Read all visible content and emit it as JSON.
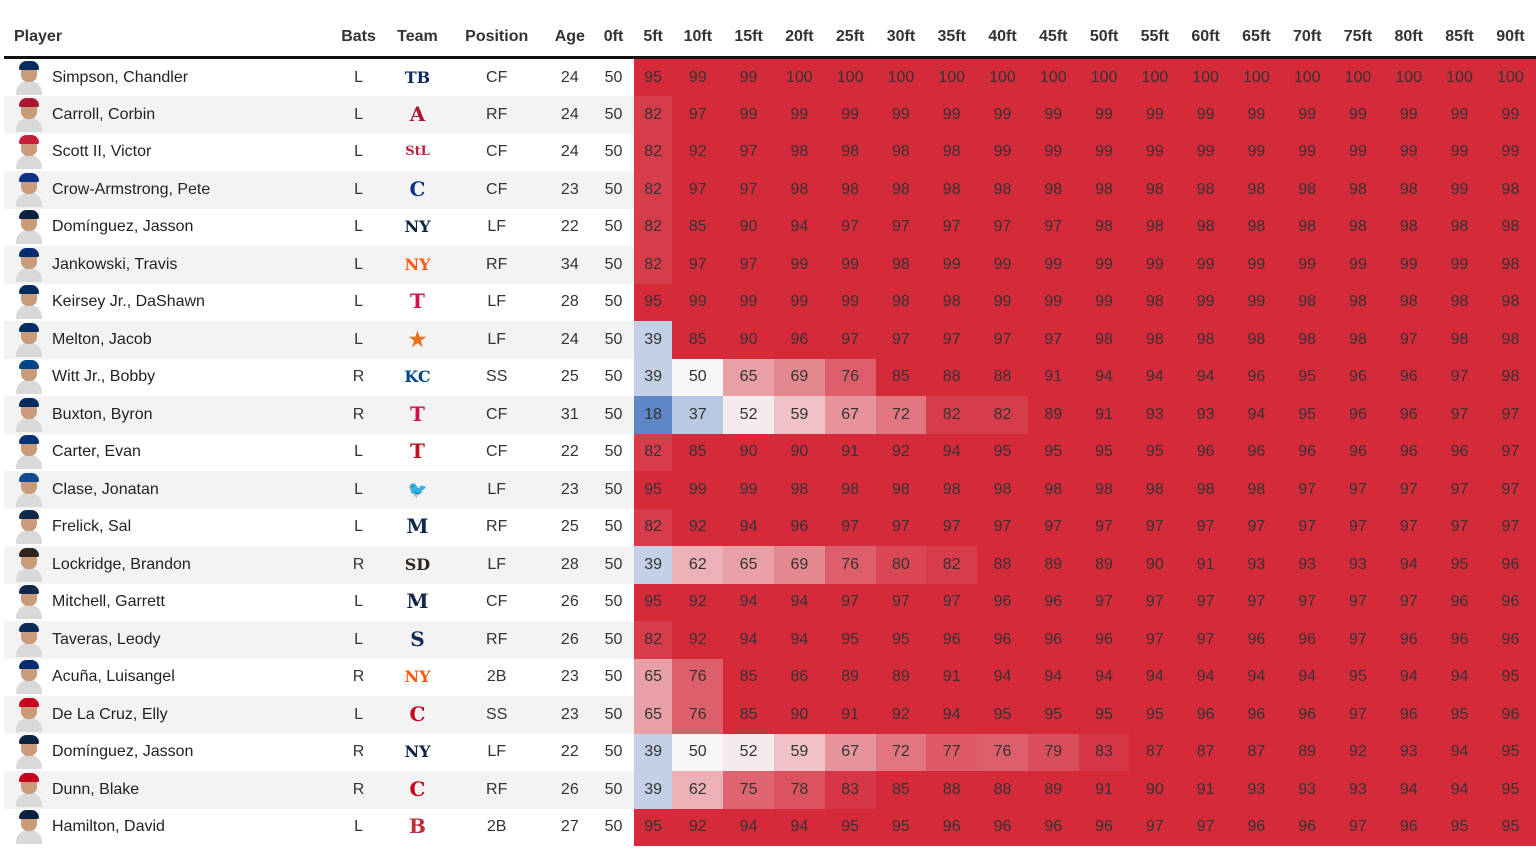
{
  "headers": [
    "Player",
    "Bats",
    "Team",
    "Position",
    "Age",
    "0ft",
    "5ft",
    "10ft",
    "15ft",
    "20ft",
    "25ft",
    "30ft",
    "35ft",
    "40ft",
    "45ft",
    "50ft",
    "55ft",
    "60ft",
    "65ft",
    "70ft",
    "75ft",
    "80ft",
    "85ft",
    "90ft"
  ],
  "rows": [
    {
      "player": "Simpson, Chandler",
      "bats": "L",
      "team_icon": "rays-logo",
      "logo_glyph": "TB",
      "logo_color": "#092c5c",
      "cap_color": "#092c5c",
      "pos": "CF",
      "age": "24",
      "zero": "50",
      "values": [
        95,
        99,
        99,
        100,
        100,
        100,
        100,
        100,
        100,
        100,
        100,
        100,
        100,
        100,
        100,
        100,
        100,
        100
      ]
    },
    {
      "player": "Carroll, Corbin",
      "bats": "L",
      "team_icon": "diamondbacks-logo",
      "logo_glyph": "A",
      "logo_color": "#a71930",
      "cap_color": "#a71930",
      "pos": "RF",
      "age": "24",
      "zero": "50",
      "values": [
        82,
        97,
        99,
        99,
        99,
        99,
        99,
        99,
        99,
        99,
        99,
        99,
        99,
        99,
        99,
        99,
        99,
        99
      ]
    },
    {
      "player": "Scott II, Victor",
      "bats": "L",
      "team_icon": "cardinals-logo",
      "logo_glyph": "StL",
      "logo_color": "#c41e3a",
      "cap_color": "#c41e3a",
      "pos": "CF",
      "age": "24",
      "zero": "50",
      "values": [
        82,
        92,
        97,
        98,
        98,
        98,
        98,
        99,
        99,
        99,
        99,
        99,
        99,
        99,
        99,
        99,
        99,
        99
      ]
    },
    {
      "player": "Crow-Armstrong, Pete",
      "bats": "L",
      "team_icon": "cubs-logo",
      "logo_glyph": "C",
      "logo_color": "#0e3386",
      "cap_color": "#0e3386",
      "pos": "CF",
      "age": "23",
      "zero": "50",
      "values": [
        82,
        97,
        97,
        98,
        98,
        98,
        98,
        98,
        98,
        98,
        98,
        98,
        98,
        98,
        98,
        98,
        99,
        98
      ]
    },
    {
      "player": "Domínguez, Jasson",
      "bats": "L",
      "team_icon": "yankees-logo",
      "logo_glyph": "NY",
      "logo_color": "#0c2340",
      "cap_color": "#0c2340",
      "pos": "LF",
      "age": "22",
      "zero": "50",
      "values": [
        82,
        85,
        90,
        94,
        97,
        97,
        97,
        97,
        97,
        98,
        98,
        98,
        98,
        98,
        98,
        98,
        98,
        98
      ]
    },
    {
      "player": "Jankowski, Travis",
      "bats": "L",
      "team_icon": "mets-logo",
      "logo_glyph": "NY",
      "logo_color": "#ff5910",
      "cap_color": "#002d72",
      "pos": "RF",
      "age": "34",
      "zero": "50",
      "values": [
        82,
        97,
        97,
        99,
        99,
        98,
        99,
        99,
        99,
        99,
        99,
        99,
        99,
        99,
        99,
        99,
        99,
        98
      ]
    },
    {
      "player": "Keirsey Jr., DaShawn",
      "bats": "L",
      "team_icon": "twins-logo",
      "logo_glyph": "T",
      "logo_color": "#d31145",
      "cap_color": "#002b5c",
      "pos": "LF",
      "age": "28",
      "zero": "50",
      "values": [
        95,
        99,
        99,
        99,
        99,
        98,
        98,
        99,
        99,
        99,
        98,
        99,
        99,
        98,
        98,
        98,
        98,
        98
      ]
    },
    {
      "player": "Melton, Jacob",
      "bats": "L",
      "team_icon": "astros-logo",
      "logo_glyph": "★",
      "logo_color": "#eb6e1f",
      "cap_color": "#002d62",
      "pos": "LF",
      "age": "24",
      "zero": "50",
      "values": [
        39,
        85,
        90,
        96,
        97,
        97,
        97,
        97,
        97,
        98,
        98,
        98,
        98,
        98,
        98,
        97,
        98,
        98
      ]
    },
    {
      "player": "Witt Jr., Bobby",
      "bats": "R",
      "team_icon": "royals-logo",
      "logo_glyph": "KC",
      "logo_color": "#004687",
      "cap_color": "#004687",
      "pos": "SS",
      "age": "25",
      "zero": "50",
      "values": [
        39,
        50,
        65,
        69,
        76,
        85,
        88,
        88,
        91,
        94,
        94,
        94,
        96,
        95,
        96,
        96,
        97,
        98
      ]
    },
    {
      "player": "Buxton, Byron",
      "bats": "R",
      "team_icon": "twins-logo",
      "logo_glyph": "T",
      "logo_color": "#d31145",
      "cap_color": "#002b5c",
      "pos": "CF",
      "age": "31",
      "zero": "50",
      "values": [
        18,
        37,
        52,
        59,
        67,
        72,
        82,
        82,
        89,
        91,
        93,
        93,
        94,
        95,
        96,
        96,
        97,
        97
      ]
    },
    {
      "player": "Carter, Evan",
      "bats": "L",
      "team_icon": "rangers-logo",
      "logo_glyph": "T",
      "logo_color": "#c0111f",
      "cap_color": "#003278",
      "pos": "CF",
      "age": "22",
      "zero": "50",
      "values": [
        82,
        85,
        90,
        90,
        91,
        92,
        94,
        95,
        95,
        95,
        95,
        96,
        96,
        96,
        96,
        96,
        96,
        97
      ]
    },
    {
      "player": "Clase, Jonatan",
      "bats": "L",
      "team_icon": "blue-jays-logo",
      "logo_glyph": "🐦",
      "logo_color": "#134a8e",
      "cap_color": "#134a8e",
      "pos": "LF",
      "age": "23",
      "zero": "50",
      "values": [
        95,
        99,
        99,
        98,
        98,
        98,
        98,
        98,
        98,
        98,
        98,
        98,
        98,
        97,
        97,
        97,
        97,
        97
      ]
    },
    {
      "player": "Frelick, Sal",
      "bats": "L",
      "team_icon": "brewers-logo",
      "logo_glyph": "M",
      "logo_color": "#12284b",
      "cap_color": "#12284b",
      "pos": "RF",
      "age": "25",
      "zero": "50",
      "values": [
        82,
        92,
        94,
        96,
        97,
        97,
        97,
        97,
        97,
        97,
        97,
        97,
        97,
        97,
        97,
        97,
        97,
        97
      ]
    },
    {
      "player": "Lockridge, Brandon",
      "bats": "R",
      "team_icon": "padres-logo",
      "logo_glyph": "SD",
      "logo_color": "#2f241d",
      "cap_color": "#2f241d",
      "pos": "LF",
      "age": "28",
      "zero": "50",
      "values": [
        39,
        62,
        65,
        69,
        76,
        80,
        82,
        88,
        89,
        89,
        90,
        91,
        93,
        93,
        93,
        94,
        95,
        96
      ]
    },
    {
      "player": "Mitchell, Garrett",
      "bats": "L",
      "team_icon": "brewers-logo",
      "logo_glyph": "M",
      "logo_color": "#12284b",
      "cap_color": "#12284b",
      "pos": "CF",
      "age": "26",
      "zero": "50",
      "values": [
        95,
        92,
        94,
        94,
        97,
        97,
        97,
        96,
        96,
        97,
        97,
        97,
        97,
        97,
        97,
        97,
        96,
        96
      ]
    },
    {
      "player": "Taveras, Leody",
      "bats": "L",
      "team_icon": "mariners-logo",
      "logo_glyph": "S",
      "logo_color": "#0c2c56",
      "cap_color": "#0c2c56",
      "pos": "RF",
      "age": "26",
      "zero": "50",
      "values": [
        82,
        92,
        94,
        94,
        95,
        95,
        96,
        96,
        96,
        96,
        97,
        97,
        96,
        96,
        97,
        96,
        96,
        96
      ]
    },
    {
      "player": "Acuña, Luisangel",
      "bats": "R",
      "team_icon": "mets-logo",
      "logo_glyph": "NY",
      "logo_color": "#ff5910",
      "cap_color": "#002d72",
      "pos": "2B",
      "age": "23",
      "zero": "50",
      "values": [
        65,
        76,
        85,
        86,
        89,
        89,
        91,
        94,
        94,
        94,
        94,
        94,
        94,
        94,
        95,
        94,
        94,
        95
      ]
    },
    {
      "player": "De La Cruz, Elly",
      "bats": "L",
      "team_icon": "reds-logo",
      "logo_glyph": "C",
      "logo_color": "#c6011f",
      "cap_color": "#c6011f",
      "pos": "SS",
      "age": "23",
      "zero": "50",
      "values": [
        65,
        76,
        85,
        90,
        91,
        92,
        94,
        95,
        95,
        95,
        95,
        96,
        96,
        96,
        97,
        96,
        95,
        96
      ]
    },
    {
      "player": "Domínguez, Jasson",
      "bats": "R",
      "team_icon": "yankees-logo",
      "logo_glyph": "NY",
      "logo_color": "#0c2340",
      "cap_color": "#0c2340",
      "pos": "LF",
      "age": "22",
      "zero": "50",
      "values": [
        39,
        50,
        52,
        59,
        67,
        72,
        77,
        76,
        79,
        83,
        87,
        87,
        87,
        89,
        92,
        93,
        94,
        95
      ]
    },
    {
      "player": "Dunn, Blake",
      "bats": "R",
      "team_icon": "reds-logo",
      "logo_glyph": "C",
      "logo_color": "#c6011f",
      "cap_color": "#c6011f",
      "pos": "RF",
      "age": "26",
      "zero": "50",
      "values": [
        39,
        62,
        75,
        78,
        83,
        85,
        88,
        88,
        89,
        91,
        90,
        91,
        93,
        93,
        93,
        94,
        94,
        95
      ]
    },
    {
      "player": "Hamilton, David",
      "bats": "L",
      "team_icon": "red-sox-logo",
      "logo_glyph": "B",
      "logo_color": "#bd3039",
      "cap_color": "#0c2340",
      "pos": "2B",
      "age": "27",
      "zero": "50",
      "values": [
        95,
        92,
        94,
        94,
        95,
        95,
        96,
        96,
        96,
        96,
        97,
        97,
        96,
        96,
        97,
        96,
        95,
        95
      ]
    }
  ],
  "colors": {
    "high": "#d42a3a",
    "mid": "#f7f7f7",
    "low": "#5f86c6"
  }
}
